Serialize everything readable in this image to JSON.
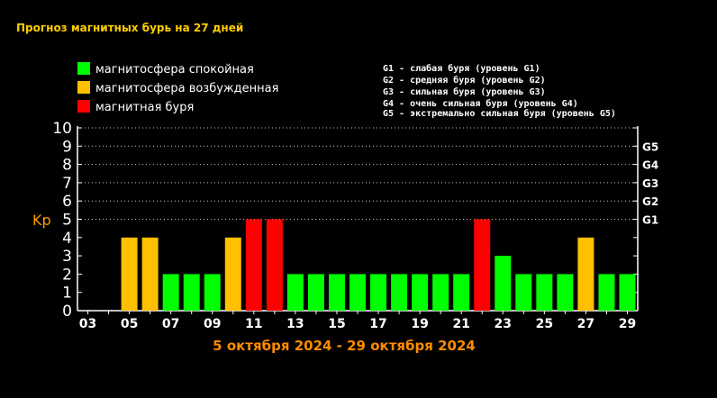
{
  "title": "Прогноз магнитных бурь на 27 дней",
  "legend": [
    {
      "label": "магнитосфера спокойная",
      "color": "#00ff00"
    },
    {
      "label": "магнитосфера возбужденная",
      "color": "#ffc000"
    },
    {
      "label": "магнитная буря",
      "color": "#ff0000"
    }
  ],
  "g_levels": [
    "G1 - слабая буря (уровень G1)",
    "G2 - средняя буря (уровень G2)",
    "G3 - сильная буря (уровень G3)",
    "G4 - очень сильная буря (уровень G4)",
    "G5 - экстремально сильная буря (уровень G5)"
  ],
  "date_range": "5 октября 2024 - 29 октября 2024",
  "chart_data": {
    "type": "bar",
    "ylabel": "Kp",
    "ylim": [
      0,
      10
    ],
    "yticks": [
      0,
      1,
      2,
      3,
      4,
      5,
      6,
      7,
      8,
      9,
      10
    ],
    "grid": "dotted horizontal at Kp 5-10",
    "g_ticks": [
      {
        "kp": 5,
        "label": "G1"
      },
      {
        "kp": 6,
        "label": "G2"
      },
      {
        "kp": 7,
        "label": "G3"
      },
      {
        "kp": 8,
        "label": "G4"
      },
      {
        "kp": 9,
        "label": "G5"
      }
    ],
    "x_tick_labels": [
      "03",
      "05",
      "07",
      "09",
      "11",
      "13",
      "15",
      "17",
      "19",
      "21",
      "23",
      "25",
      "27",
      "29"
    ],
    "days": [
      3,
      4,
      5,
      6,
      7,
      8,
      9,
      10,
      11,
      12,
      13,
      14,
      15,
      16,
      17,
      18,
      19,
      20,
      21,
      22,
      23,
      24,
      25,
      26,
      27,
      28,
      29
    ],
    "values": [
      null,
      null,
      4,
      4,
      2,
      2,
      2,
      4,
      5,
      5,
      2,
      2,
      2,
      2,
      2,
      2,
      2,
      2,
      2,
      5,
      3,
      2,
      2,
      2,
      4,
      2,
      2
    ],
    "colors": {
      "quiet": "#00ff00",
      "active": "#ffc000",
      "storm": "#ff0000"
    }
  }
}
